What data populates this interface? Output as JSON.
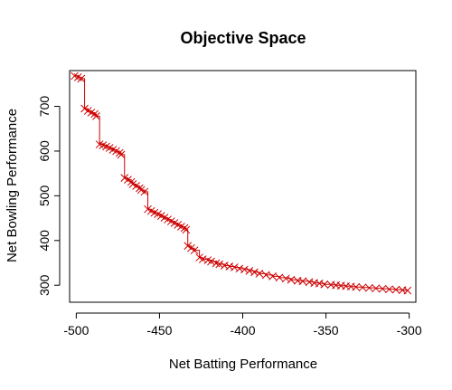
{
  "chart_data": {
    "type": "scatter",
    "title": "Objective Space",
    "xlabel": "Net Batting Performance",
    "ylabel": "Net Bowling Performance",
    "xlim": [
      -504,
      -296
    ],
    "ylim": [
      262,
      780
    ],
    "x_ticks": [
      -500,
      -450,
      -400,
      -350,
      -300
    ],
    "x_tick_labels": [
      "-500",
      "-450",
      "-400",
      "-350",
      "-300"
    ],
    "y_ticks": [
      300,
      400,
      500,
      600,
      700
    ],
    "y_tick_labels": [
      "300",
      "400",
      "500",
      "600",
      "700"
    ],
    "marker": "x",
    "color": "#cc0000",
    "step_line": true,
    "grid": false,
    "series": [
      {
        "points": [
          [
            -501,
            768
          ],
          [
            -499,
            765
          ],
          [
            -497,
            762
          ],
          [
            -495,
            695
          ],
          [
            -493,
            690
          ],
          [
            -491,
            686
          ],
          [
            -489,
            683
          ],
          [
            -488,
            678
          ],
          [
            -486,
            615
          ],
          [
            -484,
            613
          ],
          [
            -482,
            610
          ],
          [
            -480,
            607
          ],
          [
            -478,
            603
          ],
          [
            -476,
            600
          ],
          [
            -474,
            596
          ],
          [
            -473,
            592
          ],
          [
            -471,
            540
          ],
          [
            -469,
            536
          ],
          [
            -467,
            531
          ],
          [
            -466,
            526
          ],
          [
            -464,
            522
          ],
          [
            -462,
            517
          ],
          [
            -461,
            513
          ],
          [
            -459,
            509
          ],
          [
            -457,
            470
          ],
          [
            -455,
            466
          ],
          [
            -453,
            462
          ],
          [
            -451,
            459
          ],
          [
            -449,
            455
          ],
          [
            -447,
            451
          ],
          [
            -445,
            447
          ],
          [
            -443,
            443
          ],
          [
            -441,
            439
          ],
          [
            -439,
            435
          ],
          [
            -437,
            431
          ],
          [
            -435,
            428
          ],
          [
            -434,
            424
          ],
          [
            -433,
            388
          ],
          [
            -431,
            383
          ],
          [
            -429,
            378
          ],
          [
            -426,
            362
          ],
          [
            -424,
            358
          ],
          [
            -421,
            356
          ],
          [
            -419,
            353
          ],
          [
            -416,
            349
          ],
          [
            -414,
            347
          ],
          [
            -411,
            344
          ],
          [
            -408,
            342
          ],
          [
            -405,
            340
          ],
          [
            -402,
            337
          ],
          [
            -399,
            335
          ],
          [
            -396,
            332
          ],
          [
            -393,
            329
          ],
          [
            -390,
            326
          ],
          [
            -386,
            323
          ],
          [
            -382,
            320
          ],
          [
            -378,
            317
          ],
          [
            -374,
            315
          ],
          [
            -371,
            312
          ],
          [
            -367,
            310
          ],
          [
            -364,
            309
          ],
          [
            -360,
            307
          ],
          [
            -357,
            305
          ],
          [
            -354,
            304
          ],
          [
            -351,
            302
          ],
          [
            -347,
            301
          ],
          [
            -344,
            300
          ],
          [
            -341,
            299
          ],
          [
            -338,
            298
          ],
          [
            -335,
            297
          ],
          [
            -332,
            296
          ],
          [
            -328,
            295
          ],
          [
            -324,
            294
          ],
          [
            -320,
            293
          ],
          [
            -316,
            292
          ],
          [
            -312,
            291
          ],
          [
            -308,
            290
          ],
          [
            -304,
            289
          ],
          [
            -301,
            288
          ]
        ]
      }
    ]
  }
}
